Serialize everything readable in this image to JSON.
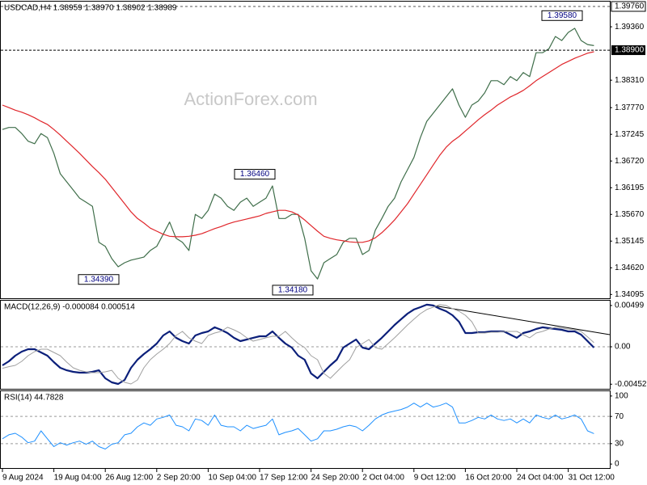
{
  "chart_data": [
    {
      "type": "line",
      "title": "USDCAD,H4  1.38959 1.38970 1.38902 1.38989",
      "watermark": "ActionForex.com",
      "ylim": [
        1.3402,
        1.39855
      ],
      "yticks": [
        {
          "value": 1.3936,
          "label": "1.39360"
        },
        {
          "value": 1.3831,
          "label": "1.38310"
        },
        {
          "value": 1.3777,
          "label": "1.37770"
        },
        1.37245,
        {
          "value": 1.3672,
          "label": "1.36720"
        },
        1.36195,
        {
          "value": 1.3567,
          "label": "1.35670"
        },
        1.35145,
        {
          "value": 1.3462,
          "label": "1.34620"
        },
        1.34095
      ],
      "high_line": {
        "value": 1.3976,
        "label": "1.39760"
      },
      "current_price": {
        "value": 1.389,
        "label": "1.38900"
      },
      "annotations": [
        {
          "text": "1.39580",
          "value": 1.3958
        },
        {
          "text": "1.36460",
          "value": 1.3646
        },
        {
          "text": "1.34390",
          "value": 1.3439
        },
        {
          "text": "1.34180",
          "value": 1.3418
        }
      ],
      "series": [
        {
          "color": "#3f6e4a",
          "values": [
            1.3734,
            1.3738,
            1.3738,
            1.3726,
            1.3711,
            1.3706,
            1.3726,
            1.3718,
            1.3687,
            1.3647,
            1.3631,
            1.3615,
            1.3599,
            1.3591,
            1.3583,
            1.3512,
            1.3504,
            1.348,
            1.3464,
            1.3472,
            1.3477,
            1.348,
            1.3483,
            1.3496,
            1.3504,
            1.3528,
            1.3552,
            1.352,
            1.3512,
            1.3496,
            1.3567,
            1.3559,
            1.3575,
            1.3607,
            1.3599,
            1.3583,
            1.3575,
            1.3591,
            1.3599,
            1.3583,
            1.3591,
            1.3599,
            1.3623,
            1.3559,
            1.3559,
            1.3567,
            1.3567,
            1.352,
            1.3456,
            1.344,
            1.3472,
            1.348,
            1.3488,
            1.3512,
            1.352,
            1.352,
            1.3488,
            1.3496,
            1.3536,
            1.3559,
            1.3583,
            1.3599,
            1.3631,
            1.3655,
            1.3679,
            1.3718,
            1.375,
            1.3766,
            1.3782,
            1.3798,
            1.3814,
            1.3782,
            1.3758,
            1.3782,
            1.379,
            1.3806,
            1.383,
            1.383,
            1.3822,
            1.3838,
            1.383,
            1.3846,
            1.3838,
            1.3885,
            1.3885,
            1.3893,
            1.3917,
            1.3909,
            1.3925,
            1.3933,
            1.3909,
            1.3901,
            1.3899
          ]
        },
        {
          "color": "#e0262b",
          "values": [
            1.3782,
            1.3777,
            1.3772,
            1.3768,
            1.3763,
            1.3757,
            1.375,
            1.3744,
            1.3734,
            1.3723,
            1.3711,
            1.3699,
            1.3687,
            1.3674,
            1.3661,
            1.3649,
            1.3636,
            1.362,
            1.3604,
            1.3588,
            1.3572,
            1.3559,
            1.355,
            1.354,
            1.3534,
            1.3528,
            1.3524,
            1.3523,
            1.3523,
            1.3524,
            1.3526,
            1.3529,
            1.3534,
            1.3539,
            1.3543,
            1.3548,
            1.3552,
            1.3555,
            1.3558,
            1.3561,
            1.3564,
            1.3569,
            1.3572,
            1.3575,
            1.3575,
            1.3572,
            1.3566,
            1.3556,
            1.3545,
            1.3534,
            1.3524,
            1.352,
            1.3517,
            1.3515,
            1.3513,
            1.3512,
            1.3512,
            1.3515,
            1.3521,
            1.3531,
            1.3543,
            1.3556,
            1.3572,
            1.3588,
            1.3607,
            1.3626,
            1.3645,
            1.3664,
            1.3683,
            1.3699,
            1.3711,
            1.372,
            1.3731,
            1.3742,
            1.3753,
            1.3763,
            1.3772,
            1.3782,
            1.379,
            1.3798,
            1.3804,
            1.3811,
            1.382,
            1.383,
            1.3838,
            1.3846,
            1.3854,
            1.3862,
            1.3868,
            1.3874,
            1.3879,
            1.3884,
            1.3887
          ]
        }
      ]
    },
    {
      "type": "line",
      "title": "MACD(12,26,9) -0.000084 0.000514",
      "ylim": [
        -0.00518,
        0.00557
      ],
      "yticks": [
        0.00499,
        {
          "value": 0,
          "label": "0.00"
        },
        -0.004522
      ],
      "zero_line": true,
      "series": [
        {
          "color": "#0b1f7a",
          "width": 2.2,
          "values": [
            -0.00225,
            -0.00176,
            -0.00108,
            -0.00059,
            -0.00029,
            -0.00029,
            -0.00068,
            -0.00108,
            -0.00186,
            -0.00254,
            -0.00284,
            -0.00303,
            -0.00313,
            -0.00313,
            -0.00303,
            -0.00284,
            -0.00381,
            -0.0043,
            -0.0045,
            -0.00401,
            -0.00254,
            -0.00156,
            -0.00088,
            -0.00029,
            0.00039,
            0.00137,
            0.00186,
            0.00108,
            0.00068,
            0.00039,
            0.00137,
            0.00166,
            0.00186,
            0.00235,
            0.00205,
            0.00166,
            0.00108,
            0.00068,
            0.00088,
            0.00108,
            0.00127,
            0.00127,
            0.00186,
            0.00108,
            0.00039,
            -0.0001,
            -0.00108,
            -0.00156,
            -0.00323,
            -0.00381,
            -0.00303,
            -0.00225,
            -0.00156,
            -0.0001,
            0.00039,
            0.00088,
            -0.0001,
            -0.00029,
            0.00039,
            0.00108,
            0.00186,
            0.00264,
            0.00333,
            0.00401,
            0.0045,
            0.00479,
            0.00509,
            0.00499,
            0.0046,
            0.0043,
            0.00381,
            0.00303,
            0.00166,
            0.00166,
            0.00176,
            0.00176,
            0.00186,
            0.00186,
            0.00186,
            0.00147,
            0.00108,
            0.00166,
            0.00186,
            0.00215,
            0.00235,
            0.00225,
            0.00215,
            0.00205,
            0.00186,
            0.00186,
            0.00147,
            0.00068,
            -0.0001
          ]
        },
        {
          "color": "#a0a0a0",
          "width": 1,
          "values": [
            -0.0026,
            -0.0024,
            -0.00225,
            -0.00176,
            -0.00108,
            -0.00059,
            -0.00029,
            -0.00029,
            -0.00068,
            -0.00108,
            -0.00186,
            -0.00254,
            -0.00284,
            -0.00303,
            -0.00313,
            -0.00313,
            -0.00303,
            -0.00284,
            -0.00381,
            -0.0043,
            -0.0045,
            -0.00401,
            -0.00254,
            -0.00156,
            -0.00088,
            -0.00029,
            0.00039,
            0.00137,
            0.00186,
            0.00108,
            0.00068,
            0.00039,
            0.00137,
            0.00166,
            0.00186,
            0.00235,
            0.00205,
            0.00166,
            0.00108,
            0.00068,
            0.00088,
            0.00108,
            0.00127,
            0.00127,
            0.00186,
            0.00108,
            0.00039,
            -0.0001,
            -0.00108,
            -0.00156,
            -0.00323,
            -0.00381,
            -0.00303,
            -0.00225,
            -0.00156,
            -0.0001,
            0.00039,
            0.00088,
            -0.0001,
            -0.00029,
            0.00039,
            0.00108,
            0.00186,
            0.00264,
            0.00333,
            0.00401,
            0.0045,
            0.00479,
            0.00509,
            0.00499,
            0.0046,
            0.0043,
            0.00381,
            0.00303,
            0.00166,
            0.00166,
            0.00176,
            0.00176,
            0.00186,
            0.00186,
            0.00186,
            0.00147,
            0.00108,
            0.00166,
            0.00186,
            0.00215,
            0.00235,
            0.00225,
            0.00215,
            0.00205,
            0.00186,
            0.0012,
            0.0005
          ]
        }
      ]
    },
    {
      "type": "line",
      "title": "RSI(14) 44.7828",
      "ylim": [
        -7,
        107
      ],
      "yticks": [
        100,
        70,
        30,
        0
      ],
      "levels": [
        70,
        30
      ],
      "categories": [
        "9 Aug 2024",
        null,
        null,
        null,
        null,
        null,
        null,
        null,
        "19 Aug 04:00",
        null,
        null,
        null,
        null,
        null,
        null,
        null,
        "26 Aug 12:00",
        null,
        null,
        null,
        null,
        null,
        null,
        null,
        "2 Sep 20:00",
        null,
        null,
        null,
        null,
        null,
        null,
        null,
        "10 Sep 04:00",
        null,
        null,
        null,
        null,
        null,
        null,
        null,
        "17 Sep 12:00",
        null,
        null,
        null,
        null,
        null,
        null,
        null,
        "24 Sep 20:00",
        null,
        null,
        null,
        null,
        null,
        null,
        null,
        "2 Oct 04:00",
        null,
        null,
        null,
        null,
        null,
        null,
        null,
        "9 Oct 12:00",
        null,
        null,
        null,
        null,
        null,
        null,
        null,
        "16 Oct 20:00",
        null,
        null,
        null,
        null,
        null,
        null,
        null,
        "24 Oct 04:00",
        null,
        null,
        null,
        null,
        null,
        null,
        null,
        "31 Oct 12:00",
        null,
        null,
        null,
        null
      ],
      "series": [
        {
          "color": "#1e90ff",
          "width": 1,
          "values": [
            37.2,
            43,
            45.3,
            39.5,
            31.4,
            33.7,
            48.8,
            37.2,
            25.6,
            31.4,
            27.9,
            31.4,
            33.7,
            29.1,
            33.7,
            25.6,
            22.1,
            29.1,
            31.4,
            43,
            45.3,
            54.7,
            60.5,
            57,
            66.3,
            68.6,
            72.1,
            57,
            54.7,
            48.8,
            66.3,
            64,
            57,
            72.1,
            57,
            54.7,
            54.7,
            48.8,
            57,
            52.3,
            54.7,
            57,
            66.3,
            43,
            46.5,
            48.8,
            52.3,
            43,
            33.7,
            37.2,
            48.8,
            48.8,
            51.2,
            54.7,
            57,
            54.7,
            48.8,
            57,
            66.3,
            72.1,
            75.6,
            77.9,
            80.2,
            83.7,
            89.5,
            83.7,
            89.5,
            83.7,
            86,
            89.5,
            83.7,
            60.5,
            60.5,
            64,
            68.6,
            66.3,
            72.1,
            66.3,
            64,
            66.3,
            60.5,
            66.3,
            60.5,
            72.1,
            68.6,
            66.3,
            72.1,
            66.3,
            68.6,
            72.1,
            66.3,
            48.8,
            44.8
          ]
        }
      ]
    }
  ]
}
